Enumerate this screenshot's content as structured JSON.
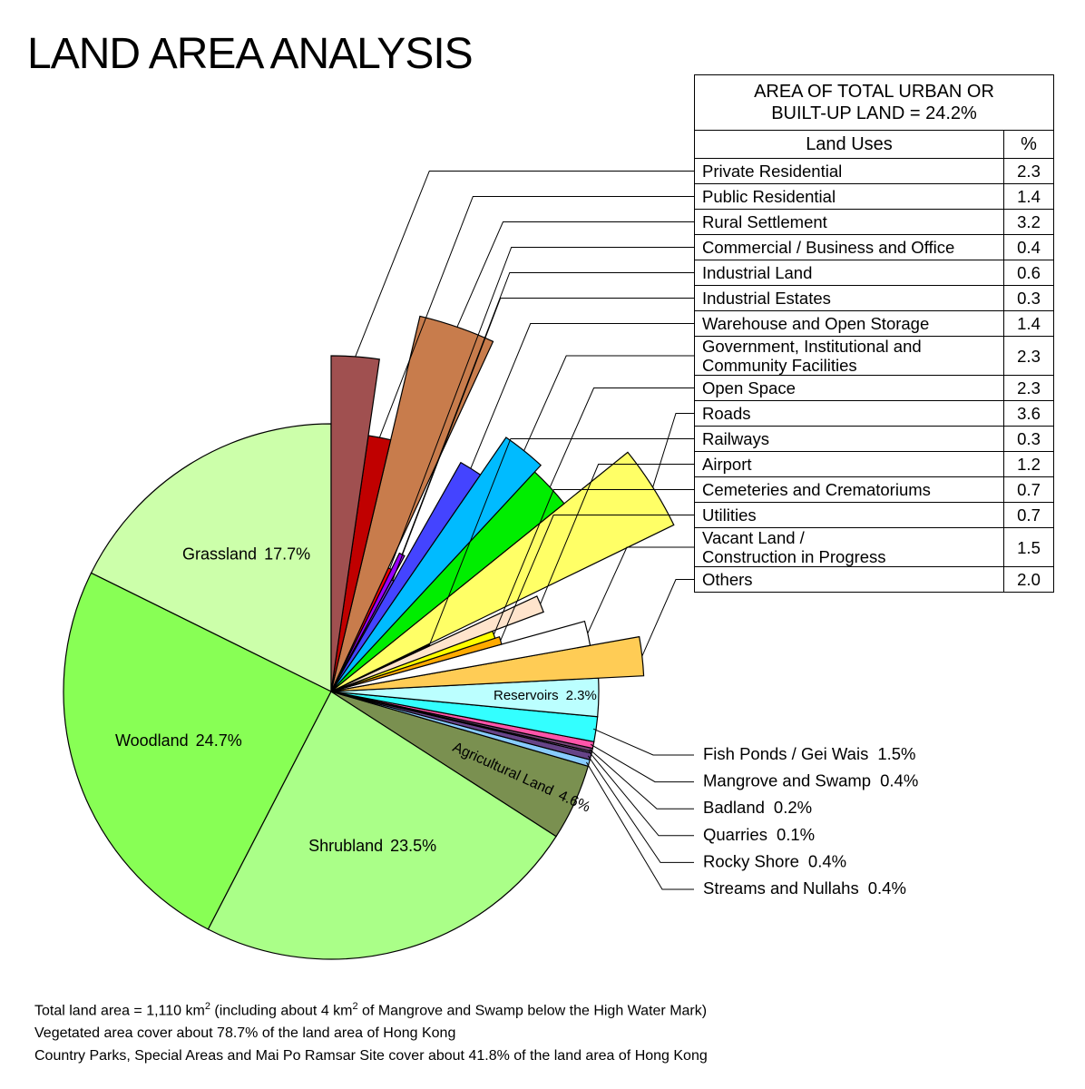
{
  "chart_data": {
    "type": "pie",
    "title": "LAND AREA ANALYSIS",
    "slices": [
      {
        "name": "Grassland",
        "value": 17.7,
        "value_label": "17.7%",
        "color": "#ccffaa"
      },
      {
        "name": "Woodland",
        "value": 24.7,
        "value_label": "24.7%",
        "color": "#88ff55"
      },
      {
        "name": "Shrubland",
        "value": 23.5,
        "value_label": "23.5%",
        "color": "#aaff88"
      },
      {
        "name": "Agricultural Land",
        "value": 4.6,
        "value_label": "4.6%",
        "color": "#7a9050"
      }
    ],
    "outer_slices": [
      {
        "name": "Fish Ponds / Gei Wais",
        "value": 1.5,
        "value_label": "1.5%",
        "color": "#33ffff"
      },
      {
        "name": "Mangrove and Swamp",
        "value": 0.4,
        "value_label": "0.4%",
        "color": "#ff55aa"
      },
      {
        "name": "Badland",
        "value": 0.2,
        "value_label": "0.2%",
        "color": "#774477"
      },
      {
        "name": "Quarries",
        "value": 0.1,
        "value_label": "0.1%",
        "color": "#aa88cc"
      },
      {
        "name": "Rocky Shore",
        "value": 0.4,
        "value_label": "0.4%",
        "color": "#664488"
      },
      {
        "name": "Streams and Nullahs",
        "value": 0.4,
        "value_label": "0.4%",
        "color": "#88ccff"
      }
    ],
    "reservoirs": {
      "name": "Reservoirs",
      "value": 2.3,
      "value_label": "2.3%",
      "color": "#bbffff"
    },
    "urban": {
      "title_lines": [
        "AREA OF TOTAL URBAN OR",
        "BUILT-UP LAND = 24.2%"
      ],
      "columns": [
        "Land Uses",
        "%"
      ],
      "slices": [
        {
          "name": "Private Residential",
          "value": 2.3,
          "color": "#a05050"
        },
        {
          "name": "Public Residential",
          "value": 1.4,
          "color": "#c00000"
        },
        {
          "name": "Rural Settlement",
          "value": 3.2,
          "color": "#c87c4c"
        },
        {
          "name": "Commercial / Business and Office",
          "value": 0.4,
          "color": "#ff0000"
        },
        {
          "name": "Industrial Land",
          "value": 0.6,
          "color": "#9900ff"
        },
        {
          "name": "Industrial Estates",
          "value": 0.3,
          "color": "#7744ee"
        },
        {
          "name": "Warehouse and Open Storage",
          "value": 1.4,
          "color": "#4444ff"
        },
        {
          "name": "Government, Institutional and\nCommunity Facilities",
          "value": 2.3,
          "color": "#00bbff"
        },
        {
          "name": "Open Space",
          "value": 2.3,
          "color": "#00ee00"
        },
        {
          "name": "Roads",
          "value": 3.6,
          "color": "#ffff66"
        },
        {
          "name": "Railways",
          "value": 0.3,
          "color": "#000000"
        },
        {
          "name": "Airport",
          "value": 1.2,
          "color": "#ffe4cc"
        },
        {
          "name": "Cemeteries and Crematoriums",
          "value": 0.7,
          "color": "#ffff00"
        },
        {
          "name": "Utilities",
          "value": 0.7,
          "color": "#ffaa00"
        },
        {
          "name": "Vacant Land /\nConstruction in Progress",
          "value": 1.5,
          "color": "#ffffff"
        },
        {
          "name": "Others",
          "value": 2.0,
          "value_label": "2.0",
          "color": "#ffcc55"
        }
      ]
    },
    "notes": [
      {
        "parts": [
          "Total land area = 1,110 km",
          "2",
          " (including about 4 km",
          "2",
          " of Mangrove and Swamp below the High Water Mark)"
        ]
      },
      "Vegetated area cover about 78.7% of the land area of Hong Kong",
      "Country Parks, Special Areas and Mai Po Ramsar Site cover about 41.8% of the land area of Hong Kong"
    ]
  }
}
